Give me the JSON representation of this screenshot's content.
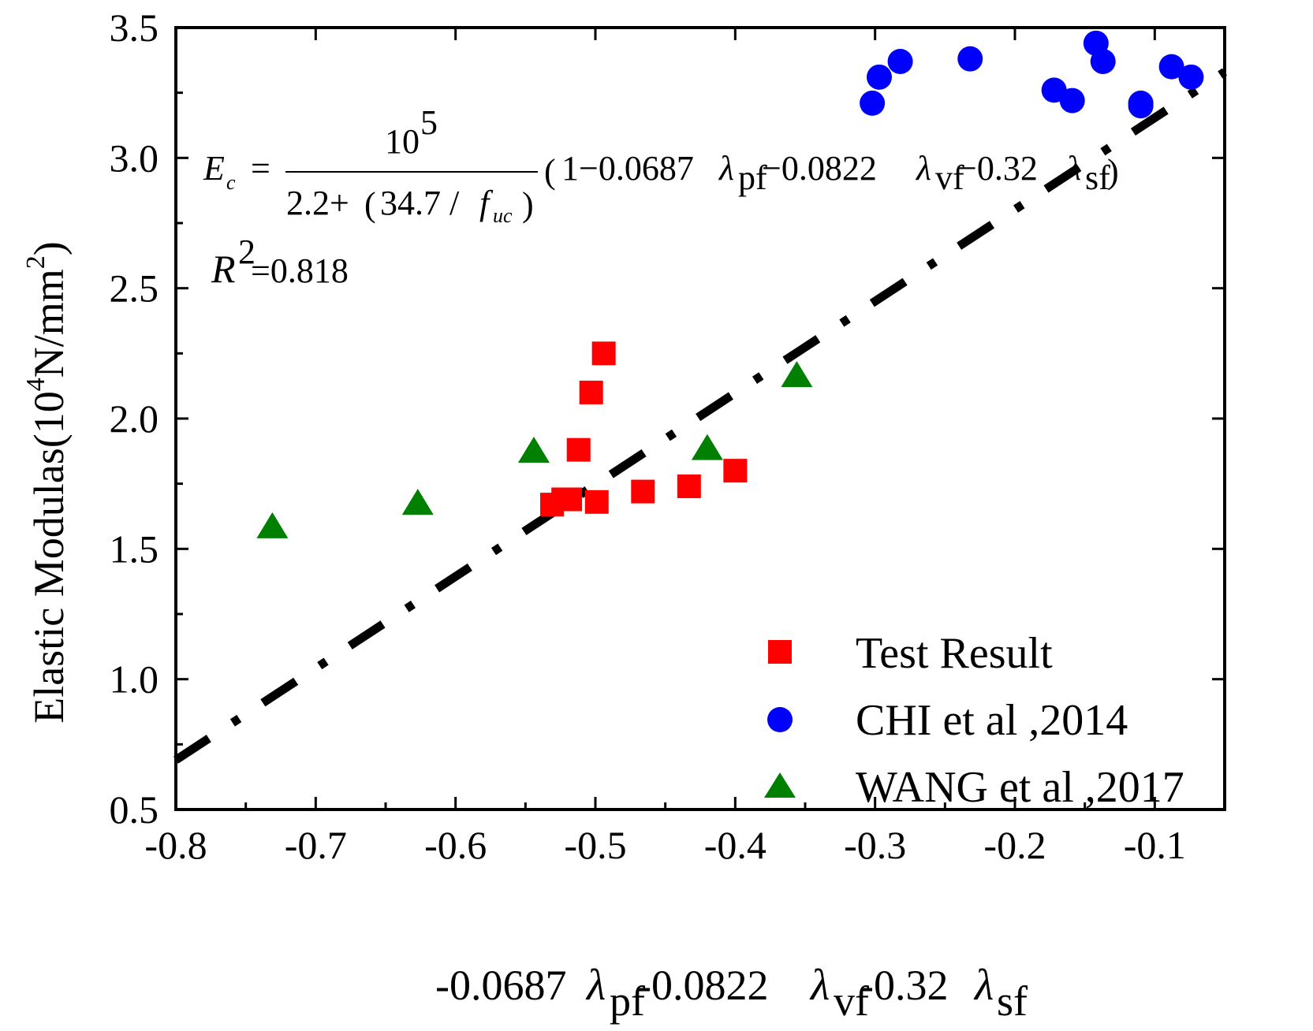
{
  "chart_data": {
    "type": "scatter",
    "title": "",
    "xlabel": {
      "parts": [
        "-0.0687",
        "λ",
        "pf",
        "-0.0822",
        "λ",
        "vf",
        "-0.32",
        "λ",
        "sf"
      ]
    },
    "ylabel": {
      "prefix": "Elastic Modulas(10",
      "exp": "4",
      "unit": "N/mm",
      "exp2": "2",
      "close": ")"
    },
    "xlim": [
      -0.8,
      -0.05
    ],
    "ylim": [
      0.5,
      3.5
    ],
    "x_ticks": [
      -0.8,
      -0.7,
      -0.6,
      -0.5,
      -0.4,
      -0.3,
      -0.2,
      -0.1
    ],
    "x_tick_labels": [
      "-0.8",
      "-0.7",
      "-0.6",
      "-0.5",
      "-0.4",
      "-0.3",
      "-0.2",
      "-0.1"
    ],
    "y_ticks": [
      0.5,
      1.0,
      1.5,
      2.0,
      2.5,
      3.0,
      3.5
    ],
    "y_tick_labels": [
      "0.5",
      "1.0",
      "1.5",
      "2.0",
      "2.5",
      "3.0",
      "3.5"
    ],
    "series": [
      {
        "name": "Test Result",
        "marker": "square",
        "color": "#ff0000",
        "points": [
          {
            "x": -0.531,
            "y": 1.67
          },
          {
            "x": -0.523,
            "y": 1.69
          },
          {
            "x": -0.518,
            "y": 1.69
          },
          {
            "x": -0.512,
            "y": 1.88
          },
          {
            "x": -0.503,
            "y": 2.1
          },
          {
            "x": -0.499,
            "y": 1.68
          },
          {
            "x": -0.494,
            "y": 2.25
          },
          {
            "x": -0.466,
            "y": 1.72
          },
          {
            "x": -0.433,
            "y": 1.74
          },
          {
            "x": -0.4,
            "y": 1.8
          }
        ]
      },
      {
        "name": "CHI et al ,2014",
        "marker": "circle",
        "color": "#0000ff",
        "points": [
          {
            "x": -0.302,
            "y": 3.21
          },
          {
            "x": -0.297,
            "y": 3.31
          },
          {
            "x": -0.282,
            "y": 3.37
          },
          {
            "x": -0.232,
            "y": 3.38
          },
          {
            "x": -0.172,
            "y": 3.26
          },
          {
            "x": -0.159,
            "y": 3.22
          },
          {
            "x": -0.142,
            "y": 3.44
          },
          {
            "x": -0.137,
            "y": 3.37
          },
          {
            "x": -0.11,
            "y": 3.21
          },
          {
            "x": -0.11,
            "y": 3.2
          },
          {
            "x": -0.088,
            "y": 3.35
          },
          {
            "x": -0.074,
            "y": 3.31
          }
        ]
      },
      {
        "name": "WANG et al ,2017",
        "marker": "triangle",
        "color": "#008000",
        "points": [
          {
            "x": -0.731,
            "y": 1.58
          },
          {
            "x": -0.627,
            "y": 1.67
          },
          {
            "x": -0.544,
            "y": 1.87
          },
          {
            "x": -0.42,
            "y": 1.88
          },
          {
            "x": -0.356,
            "y": 2.16
          }
        ]
      }
    ],
    "fit_line": {
      "style": "dash-dot",
      "color": "#000000",
      "from": {
        "x": -0.8,
        "y": 0.69
      },
      "to": {
        "x": -0.05,
        "y": 3.33
      }
    },
    "legend_position": "bottom-right",
    "annotations": {
      "equation": {
        "lhs": "E",
        "lhs_sub": "c",
        "equals": "=",
        "numerator": "10",
        "numerator_exp": "5",
        "denominator_pre": "2.2+",
        "denominator_paren_open": "(",
        "denominator_mid": "34.7 / ",
        "denominator_var": "f",
        "denominator_sub": "uc",
        "denominator_paren_close": ")",
        "bracket_open": "(",
        "term1": "1−0.0687",
        "lambda": "λ",
        "sub1": "pf",
        "term2": " −0.0822",
        "sub2": "vf",
        "term3": " −0.32",
        "sub3": "sf",
        "bracket_close": ")"
      },
      "r2": {
        "label": "R",
        "exp": "2",
        "value": "=0.818"
      }
    }
  }
}
